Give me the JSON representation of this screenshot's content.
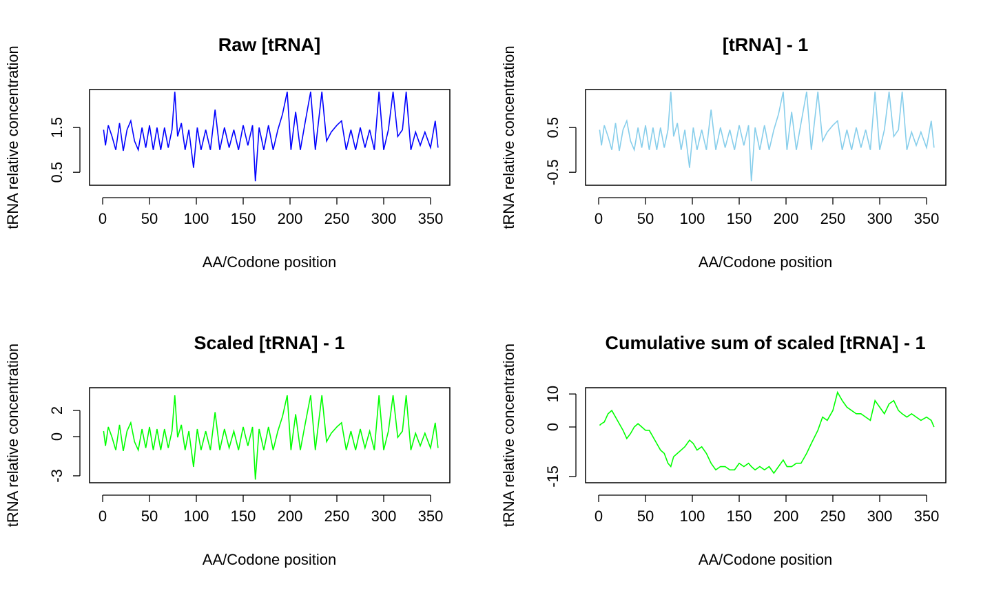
{
  "chart_data": [
    {
      "type": "line",
      "title": "Raw [tRNA]",
      "x_label": "AA/Codone position",
      "y_label": "tRNA relative concentration",
      "color": "#0000ff",
      "x": [
        1,
        3,
        6,
        10,
        14,
        18,
        22,
        26,
        30,
        34,
        38,
        42,
        46,
        50,
        54,
        58,
        62,
        66,
        70,
        74,
        77,
        80,
        84,
        88,
        92,
        97,
        101,
        105,
        110,
        115,
        120,
        125,
        130,
        135,
        140,
        145,
        150,
        155,
        160,
        163,
        167,
        172,
        177,
        182,
        187,
        192,
        197,
        201,
        206,
        211,
        216,
        222,
        227,
        234,
        239,
        244,
        250,
        255,
        260,
        265,
        270,
        275,
        280,
        285,
        290,
        295,
        300,
        305,
        310,
        315,
        320,
        324,
        329,
        334,
        339,
        344,
        350,
        355,
        358
      ],
      "values": [
        1.45,
        1.1,
        1.55,
        1.3,
        1.0,
        1.6,
        0.98,
        1.45,
        1.65,
        1.2,
        1.0,
        1.5,
        1.05,
        1.55,
        1.0,
        1.5,
        1.0,
        1.5,
        1.05,
        1.45,
        2.3,
        1.3,
        1.6,
        1.0,
        1.45,
        0.6,
        1.5,
        1.0,
        1.45,
        1.0,
        1.9,
        1.0,
        1.5,
        1.05,
        1.45,
        1.0,
        1.55,
        1.1,
        1.55,
        0.3,
        1.5,
        1.0,
        1.55,
        1.0,
        1.45,
        1.8,
        2.3,
        1.0,
        1.85,
        1.0,
        1.6,
        2.3,
        1.0,
        2.3,
        1.2,
        1.4,
        1.55,
        1.65,
        1.0,
        1.45,
        1.0,
        1.5,
        1.05,
        1.45,
        1.0,
        2.3,
        1.0,
        1.45,
        2.3,
        1.3,
        1.45,
        2.3,
        1.0,
        1.4,
        1.1,
        1.4,
        1.05,
        1.65,
        1.05
      ],
      "xlim": [
        -14,
        370.6
      ],
      "xticks": [
        0,
        50,
        100,
        150,
        200,
        250,
        300,
        350
      ],
      "ylim": [
        0.21,
        2.35
      ],
      "yticks": [
        0.5,
        1.5
      ]
    },
    {
      "type": "line",
      "title": "[tRNA] - 1",
      "x_label": "AA/Codone position",
      "y_label": "tRNA relative concentration",
      "color": "#87ceeb",
      "x": [
        1,
        3,
        6,
        10,
        14,
        18,
        22,
        26,
        30,
        34,
        38,
        42,
        46,
        50,
        54,
        58,
        62,
        66,
        70,
        74,
        77,
        80,
        84,
        88,
        92,
        97,
        101,
        105,
        110,
        115,
        120,
        125,
        130,
        135,
        140,
        145,
        150,
        155,
        160,
        163,
        167,
        172,
        177,
        182,
        187,
        192,
        197,
        201,
        206,
        211,
        216,
        222,
        227,
        234,
        239,
        244,
        250,
        255,
        260,
        265,
        270,
        275,
        280,
        285,
        290,
        295,
        300,
        305,
        310,
        315,
        320,
        324,
        329,
        334,
        339,
        344,
        350,
        355,
        358
      ],
      "values": [
        0.45,
        0.1,
        0.55,
        0.3,
        0,
        0.6,
        -0.02,
        0.45,
        0.65,
        0.2,
        0,
        0.5,
        0.05,
        0.55,
        0,
        0.5,
        0,
        0.5,
        0.05,
        0.45,
        1.3,
        0.3,
        0.6,
        0,
        0.45,
        -0.4,
        0.5,
        0,
        0.45,
        0,
        0.9,
        0,
        0.5,
        0.05,
        0.45,
        0,
        0.55,
        0.1,
        0.55,
        -0.7,
        0.5,
        0,
        0.55,
        0,
        0.45,
        0.8,
        1.3,
        0,
        0.85,
        0,
        0.6,
        1.3,
        0,
        1.3,
        0.2,
        0.4,
        0.55,
        0.65,
        0,
        0.45,
        0,
        0.5,
        0.05,
        0.45,
        0,
        1.3,
        0,
        0.45,
        1.3,
        0.3,
        0.45,
        1.3,
        0,
        0.4,
        0.1,
        0.4,
        0.05,
        0.65,
        0.05
      ],
      "xlim": [
        -14,
        370.6
      ],
      "xticks": [
        0,
        50,
        100,
        150,
        200,
        250,
        300,
        350
      ],
      "ylim": [
        -0.79,
        1.35
      ],
      "yticks": [
        -0.5,
        0.5
      ]
    },
    {
      "type": "line",
      "title": "Scaled [tRNA] - 1",
      "x_label": "AA/Codone position",
      "y_label": "tRNA relative concentration",
      "color": "#00ff00",
      "x": [
        1,
        3,
        6,
        10,
        14,
        18,
        22,
        26,
        30,
        34,
        38,
        42,
        46,
        50,
        54,
        58,
        62,
        66,
        70,
        74,
        77,
        80,
        84,
        88,
        92,
        97,
        101,
        105,
        110,
        115,
        120,
        125,
        130,
        135,
        140,
        145,
        150,
        155,
        160,
        163,
        167,
        172,
        177,
        182,
        187,
        192,
        197,
        201,
        206,
        211,
        216,
        222,
        227,
        234,
        239,
        244,
        250,
        255,
        260,
        265,
        270,
        275,
        280,
        285,
        290,
        295,
        300,
        305,
        310,
        315,
        320,
        324,
        329,
        334,
        339,
        344,
        350,
        355,
        358
      ],
      "values": [
        0.42,
        -0.71,
        0.74,
        -0.06,
        -1.03,
        0.9,
        -1.1,
        0.42,
        1.06,
        -0.39,
        -1.03,
        0.58,
        -0.87,
        0.74,
        -1.03,
        0.58,
        -1.03,
        0.58,
        -0.87,
        0.42,
        3.16,
        -0.06,
        0.9,
        -1.03,
        0.42,
        -2.32,
        0.58,
        -1.03,
        0.42,
        -1.03,
        1.87,
        -1.03,
        0.58,
        -0.87,
        0.42,
        -1.03,
        0.74,
        -0.71,
        0.74,
        -3.29,
        0.58,
        -1.03,
        0.74,
        -1.03,
        0.42,
        1.55,
        3.16,
        -1.03,
        1.71,
        -1.03,
        0.9,
        3.16,
        -1.03,
        3.16,
        -0.39,
        0.26,
        0.74,
        1.06,
        -1.03,
        0.42,
        -1.03,
        0.58,
        -0.87,
        0.42,
        -1.03,
        3.16,
        -1.03,
        0.42,
        3.16,
        -0.06,
        0.42,
        3.16,
        -1.03,
        0.26,
        -0.71,
        0.26,
        -0.87,
        1.06,
        -0.87
      ],
      "xlim": [
        -14,
        370.6
      ],
      "xticks": [
        0,
        50,
        100,
        150,
        200,
        250,
        300,
        350
      ],
      "ylim": [
        -3.53,
        3.74
      ],
      "yticks": [
        -3,
        0,
        2
      ]
    },
    {
      "type": "line",
      "title": "Cumulative sum of scaled [tRNA] - 1",
      "x_label": "AA/Codone position",
      "y_label": "tRNA relative concentration",
      "color": "#00ff00",
      "x": [
        1,
        3,
        6,
        10,
        14,
        18,
        22,
        26,
        30,
        34,
        38,
        42,
        46,
        50,
        54,
        58,
        62,
        66,
        70,
        74,
        77,
        80,
        84,
        88,
        92,
        97,
        101,
        105,
        110,
        115,
        120,
        125,
        130,
        135,
        140,
        145,
        150,
        155,
        160,
        163,
        167,
        172,
        177,
        182,
        187,
        192,
        197,
        201,
        206,
        211,
        216,
        222,
        227,
        234,
        239,
        244,
        250,
        255,
        260,
        265,
        270,
        275,
        280,
        285,
        290,
        295,
        300,
        305,
        310,
        315,
        320,
        324,
        329,
        334,
        339,
        344,
        350,
        355,
        358
      ],
      "values": [
        0.5,
        1,
        1.5,
        4,
        5,
        3,
        1,
        -1,
        -3.5,
        -2,
        0,
        1,
        0,
        -1,
        -1,
        -3,
        -5,
        -7,
        -8,
        -11,
        -12,
        -9,
        -8,
        -7,
        -6,
        -4,
        -5,
        -7,
        -6,
        -8,
        -11,
        -13,
        -12,
        -12,
        -13,
        -13,
        -11,
        -12,
        -11,
        -12,
        -13,
        -12,
        -13,
        -12,
        -14,
        -12,
        -10,
        -12,
        -12,
        -11,
        -11,
        -8,
        -5,
        -1,
        3,
        2,
        5,
        10.5,
        8,
        6,
        5,
        4,
        4,
        3,
        2,
        8,
        6,
        4,
        7,
        8,
        5,
        4,
        3,
        4,
        3,
        2,
        3,
        2,
        0
      ],
      "xlim": [
        -14,
        370.6
      ],
      "xticks": [
        0,
        50,
        100,
        150,
        200,
        250,
        300,
        350
      ],
      "ylim": [
        -16.9,
        11.9
      ],
      "yticks": [
        -15,
        0,
        10
      ]
    }
  ]
}
